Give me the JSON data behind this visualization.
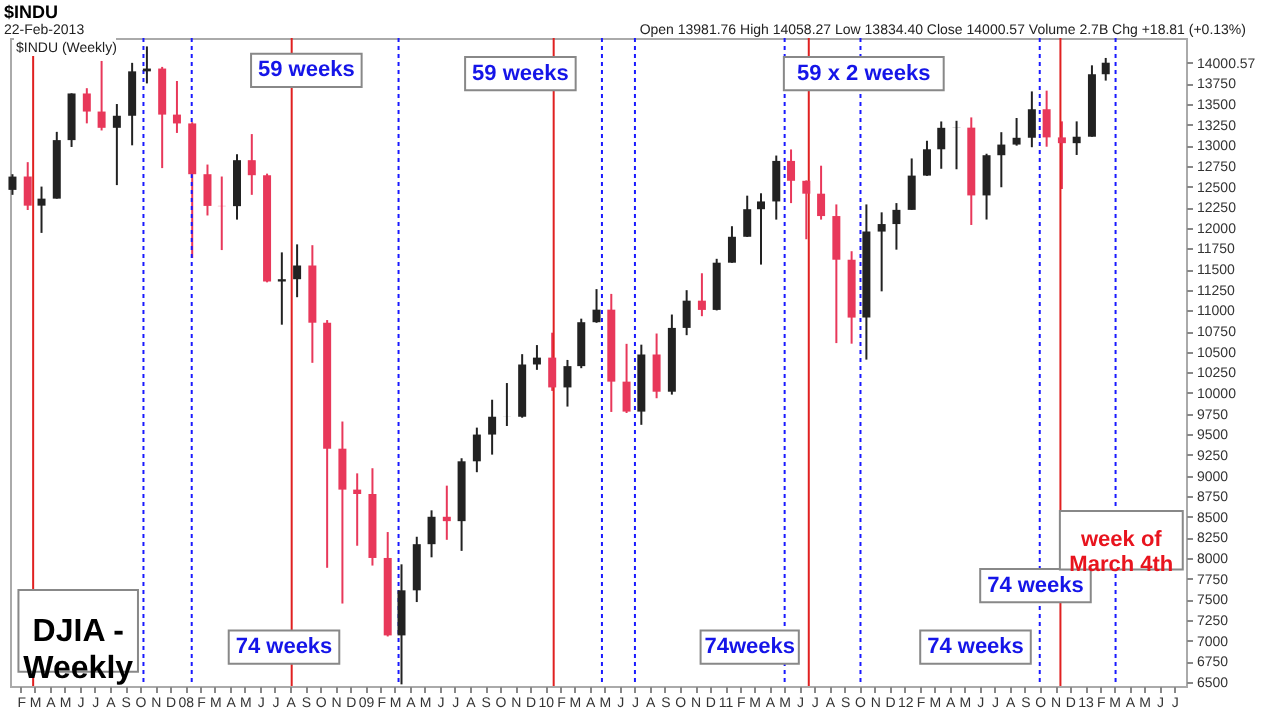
{
  "chart_data": {
    "type": "candlestick",
    "title": "$INDU",
    "subtitle": "22-Feb-2013",
    "annotations": [
      "Open 13981.76 High 14058.27 Low 13834.40 Close 14000.57 Volume 2.7B Chg +18.81 (+0.13%)",
      "$INDU (Weekly)",
      "59 weeks",
      "59 weeks",
      "59 x 2 weeks",
      "74 weeks",
      "74weeks",
      "74 weeks",
      "74 weeks",
      "week of March 4th",
      "DJIA - Weekly"
    ],
    "x": [
      "2007-01-15",
      "2007-02-15",
      "2007-03-15",
      "2007-04-15",
      "2007-05-15",
      "2007-06-15",
      "2007-07-15",
      "2007-08-15",
      "2007-09-15",
      "2007-10-15",
      "2007-11-15",
      "2007-12-15",
      "2008-01-15",
      "2008-02-15",
      "2008-03-15",
      "2008-04-15",
      "2008-05-15",
      "2008-06-15",
      "2008-07-15",
      "2008-08-15",
      "2008-09-15",
      "2008-10-15",
      "2008-11-15",
      "2008-12-15",
      "2009-01-15",
      "2009-02-15",
      "2009-03-15",
      "2009-04-15",
      "2009-05-15",
      "2009-06-15",
      "2009-07-15",
      "2009-08-15",
      "2009-09-15",
      "2009-10-15",
      "2009-11-15",
      "2009-12-15",
      "2010-01-15",
      "2010-02-15",
      "2010-03-15",
      "2010-04-15",
      "2010-05-15",
      "2010-06-15",
      "2010-07-15",
      "2010-08-15",
      "2010-09-15",
      "2010-10-15",
      "2010-11-15",
      "2010-12-15",
      "2011-01-15",
      "2011-02-15",
      "2011-03-15",
      "2011-04-15",
      "2011-05-15",
      "2011-06-15",
      "2011-07-15",
      "2011-08-15",
      "2011-09-15",
      "2011-10-15",
      "2011-11-15",
      "2011-12-15",
      "2012-01-15",
      "2012-02-15",
      "2012-03-15",
      "2012-04-15",
      "2012-05-15",
      "2012-06-15",
      "2012-07-15",
      "2012-08-15",
      "2012-09-15",
      "2012-10-15",
      "2012-11-15",
      "2012-12-15",
      "2013-01-15",
      "2013-02-12"
    ],
    "ohlc": [
      [
        12460,
        12650,
        12400,
        12621
      ],
      [
        12622,
        12796,
        12216,
        12269
      ],
      [
        12269,
        12500,
        11939,
        12354
      ],
      [
        12354,
        13163,
        12354,
        13063
      ],
      [
        13063,
        13630,
        12980,
        13628
      ],
      [
        13628,
        13692,
        13266,
        13409
      ],
      [
        13409,
        14022,
        13180,
        13212
      ],
      [
        13212,
        13500,
        12518,
        13358
      ],
      [
        13358,
        13999,
        13000,
        13896
      ],
      [
        13896,
        14198,
        13750,
        13930
      ],
      [
        13930,
        13950,
        12724,
        13372
      ],
      [
        13372,
        13779,
        13150,
        13265
      ],
      [
        13265,
        13280,
        11635,
        12650
      ],
      [
        12650,
        12767,
        12150,
        12266
      ],
      [
        12266,
        12622,
        11731,
        12263
      ],
      [
        12263,
        12892,
        12100,
        12820
      ],
      [
        12820,
        13136,
        12400,
        12638
      ],
      [
        12638,
        12657,
        11340,
        11350
      ],
      [
        11350,
        11703,
        10827,
        11378
      ],
      [
        11378,
        11800,
        11160,
        11544
      ],
      [
        11544,
        11790,
        10365,
        10851
      ],
      [
        10851,
        10883,
        7882,
        9325
      ],
      [
        9325,
        9654,
        7449,
        8829
      ],
      [
        8829,
        9026,
        8149,
        8776
      ],
      [
        8776,
        9088,
        7909,
        8001
      ],
      [
        8001,
        8315,
        7050,
        7063
      ],
      [
        7063,
        7924,
        6470,
        7609
      ],
      [
        7609,
        8258,
        7467,
        8168
      ],
      [
        8168,
        8578,
        8009,
        8500
      ],
      [
        8500,
        8877,
        8221,
        8447
      ],
      [
        8447,
        9209,
        8087,
        9172
      ],
      [
        9172,
        9580,
        9040,
        9496
      ],
      [
        9496,
        9918,
        9253,
        9712
      ],
      [
        9712,
        10120,
        9600,
        9713
      ],
      [
        9713,
        10470,
        9700,
        10345
      ],
      [
        10345,
        10580,
        10280,
        10428
      ],
      [
        10428,
        10730,
        10025,
        10067
      ],
      [
        10067,
        10400,
        9835,
        10325
      ],
      [
        10325,
        10900,
        10300,
        10857
      ],
      [
        10857,
        11258,
        10850,
        11009
      ],
      [
        11009,
        11200,
        9770,
        10137
      ],
      [
        10137,
        10595,
        9757,
        9774
      ],
      [
        9774,
        10585,
        9614,
        10466
      ],
      [
        10466,
        10720,
        9936,
        10015
      ],
      [
        10015,
        10950,
        9980,
        10788
      ],
      [
        10788,
        11245,
        10700,
        11118
      ],
      [
        11118,
        11450,
        10930,
        11006
      ],
      [
        11006,
        11625,
        11000,
        11578
      ],
      [
        11578,
        12020,
        11577,
        11892
      ],
      [
        11892,
        12390,
        11890,
        12226
      ],
      [
        12226,
        12419,
        11555,
        12320
      ],
      [
        12320,
        12876,
        12100,
        12811
      ],
      [
        12811,
        12950,
        12300,
        12570
      ],
      [
        12570,
        12575,
        11862,
        12414
      ],
      [
        12414,
        12753,
        12100,
        12143
      ],
      [
        12143,
        12284,
        10604,
        11614
      ],
      [
        11614,
        11717,
        10597,
        10913
      ],
      [
        10913,
        12284,
        10404,
        11955
      ],
      [
        11955,
        12188,
        11231,
        12046
      ],
      [
        12046,
        12300,
        11736,
        12218
      ],
      [
        12218,
        12841,
        12218,
        12633
      ],
      [
        12633,
        13055,
        12630,
        12952
      ],
      [
        12952,
        13289,
        12716,
        13212
      ],
      [
        13212,
        13297,
        12710,
        13214
      ],
      [
        13214,
        13338,
        12035,
        12393
      ],
      [
        12393,
        12898,
        12101,
        12880
      ],
      [
        12880,
        13159,
        12492,
        13009
      ],
      [
        13009,
        13331,
        12996,
        13091
      ],
      [
        13091,
        13653,
        12977,
        13437
      ],
      [
        13437,
        13662,
        12983,
        13096
      ],
      [
        13096,
        13290,
        12471,
        13026
      ],
      [
        13026,
        13290,
        12883,
        13104
      ],
      [
        13104,
        13969,
        13104,
        13861
      ],
      [
        13861,
        14058.27,
        13784,
        14000.57
      ]
    ],
    "colors": [
      "#222222",
      "#e8385a",
      "#222222",
      "#222222",
      "#222222",
      "#e8385a",
      "#e8385a",
      "#222222",
      "#222222",
      "#222222",
      "#e8385a",
      "#e8385a",
      "#e8385a",
      "#e8385a",
      "#e8385a",
      "#222222",
      "#e8385a",
      "#e8385a",
      "#222222",
      "#222222",
      "#e8385a",
      "#e8385a",
      "#e8385a",
      "#e8385a",
      "#e8385a",
      "#e8385a",
      "#222222",
      "#222222",
      "#222222",
      "#e8385a",
      "#222222",
      "#222222",
      "#222222",
      "#222222",
      "#222222",
      "#222222",
      "#e8385a",
      "#222222",
      "#222222",
      "#222222",
      "#e8385a",
      "#e8385a",
      "#222222",
      "#e8385a",
      "#222222",
      "#222222",
      "#e8385a",
      "#222222",
      "#222222",
      "#222222",
      "#222222",
      "#222222",
      "#e8385a",
      "#e8385a",
      "#e8385a",
      "#e8385a",
      "#e8385a",
      "#222222",
      "#222222",
      "#222222",
      "#222222",
      "#222222",
      "#222222",
      "#222222",
      "#e8385a",
      "#222222",
      "#222222",
      "#222222",
      "#222222",
      "#e8385a",
      "#e8385a",
      "#222222",
      "#222222",
      "#222222"
    ],
    "xlim": [
      "2007-01-10",
      "2013-07-25"
    ],
    "xticks": [
      {
        "value": "2007-02-01",
        "label": "F"
      },
      {
        "value": "2007-03-01",
        "label": "M"
      },
      {
        "value": "2007-04-01",
        "label": "A"
      },
      {
        "value": "2007-05-01",
        "label": "M"
      },
      {
        "value": "2007-06-01",
        "label": "J"
      },
      {
        "value": "2007-07-01",
        "label": "J"
      },
      {
        "value": "2007-08-01",
        "label": "A"
      },
      {
        "value": "2007-09-01",
        "label": "S"
      },
      {
        "value": "2007-10-01",
        "label": "O"
      },
      {
        "value": "2007-11-01",
        "label": "N"
      },
      {
        "value": "2007-12-01",
        "label": "D"
      },
      {
        "value": "2008-01-01",
        "label": "08"
      },
      {
        "value": "2008-02-01",
        "label": "F"
      },
      {
        "value": "2008-03-01",
        "label": "M"
      },
      {
        "value": "2008-04-01",
        "label": "A"
      },
      {
        "value": "2008-05-01",
        "label": "M"
      },
      {
        "value": "2008-06-01",
        "label": "J"
      },
      {
        "value": "2008-07-01",
        "label": "J"
      },
      {
        "value": "2008-08-01",
        "label": "A"
      },
      {
        "value": "2008-09-01",
        "label": "S"
      },
      {
        "value": "2008-10-01",
        "label": "O"
      },
      {
        "value": "2008-11-01",
        "label": "N"
      },
      {
        "value": "2008-12-01",
        "label": "D"
      },
      {
        "value": "2009-01-01",
        "label": "09"
      },
      {
        "value": "2009-02-01",
        "label": "F"
      },
      {
        "value": "2009-03-01",
        "label": "M"
      },
      {
        "value": "2009-04-01",
        "label": "A"
      },
      {
        "value": "2009-05-01",
        "label": "M"
      },
      {
        "value": "2009-06-01",
        "label": "J"
      },
      {
        "value": "2009-07-01",
        "label": "J"
      },
      {
        "value": "2009-08-01",
        "label": "A"
      },
      {
        "value": "2009-09-01",
        "label": "S"
      },
      {
        "value": "2009-10-01",
        "label": "O"
      },
      {
        "value": "2009-11-01",
        "label": "N"
      },
      {
        "value": "2009-12-01",
        "label": "D"
      },
      {
        "value": "2010-01-01",
        "label": "10"
      },
      {
        "value": "2010-02-01",
        "label": "F"
      },
      {
        "value": "2010-03-01",
        "label": "M"
      },
      {
        "value": "2010-04-01",
        "label": "A"
      },
      {
        "value": "2010-05-01",
        "label": "M"
      },
      {
        "value": "2010-06-01",
        "label": "J"
      },
      {
        "value": "2010-07-01",
        "label": "J"
      },
      {
        "value": "2010-08-01",
        "label": "A"
      },
      {
        "value": "2010-09-01",
        "label": "S"
      },
      {
        "value": "2010-10-01",
        "label": "O"
      },
      {
        "value": "2010-11-01",
        "label": "N"
      },
      {
        "value": "2010-12-01",
        "label": "D"
      },
      {
        "value": "2011-01-01",
        "label": "11"
      },
      {
        "value": "2011-02-01",
        "label": "F"
      },
      {
        "value": "2011-03-01",
        "label": "M"
      },
      {
        "value": "2011-04-01",
        "label": "A"
      },
      {
        "value": "2011-05-01",
        "label": "M"
      },
      {
        "value": "2011-06-01",
        "label": "J"
      },
      {
        "value": "2011-07-01",
        "label": "J"
      },
      {
        "value": "2011-08-01",
        "label": "A"
      },
      {
        "value": "2011-09-01",
        "label": "S"
      },
      {
        "value": "2011-10-01",
        "label": "O"
      },
      {
        "value": "2011-11-01",
        "label": "N"
      },
      {
        "value": "2011-12-01",
        "label": "D"
      },
      {
        "value": "2012-01-01",
        "label": "12"
      },
      {
        "value": "2012-02-01",
        "label": "F"
      },
      {
        "value": "2012-03-01",
        "label": "M"
      },
      {
        "value": "2012-04-01",
        "label": "A"
      },
      {
        "value": "2012-05-01",
        "label": "M"
      },
      {
        "value": "2012-06-01",
        "label": "J"
      },
      {
        "value": "2012-07-01",
        "label": "J"
      },
      {
        "value": "2012-08-01",
        "label": "A"
      },
      {
        "value": "2012-09-01",
        "label": "S"
      },
      {
        "value": "2012-10-01",
        "label": "O"
      },
      {
        "value": "2012-11-01",
        "label": "N"
      },
      {
        "value": "2012-12-01",
        "label": "D"
      },
      {
        "value": "2013-01-01",
        "label": "13"
      },
      {
        "value": "2013-02-01",
        "label": "F"
      },
      {
        "value": "2013-03-01",
        "label": "M"
      },
      {
        "value": "2013-04-01",
        "label": "A"
      },
      {
        "value": "2013-05-01",
        "label": "M"
      },
      {
        "value": "2013-06-01",
        "label": "J"
      },
      {
        "value": "2013-07-01",
        "label": "J"
      }
    ],
    "ylim": [
      6450,
      14300
    ],
    "yticks": [
      6500,
      6750,
      7000,
      7250,
      7500,
      7750,
      8000,
      8250,
      8500,
      8750,
      9000,
      9250,
      9500,
      9750,
      10000,
      10250,
      10500,
      10750,
      11000,
      11250,
      11500,
      11750,
      12000,
      12250,
      12500,
      12750,
      13000,
      13250,
      13500,
      13750,
      14000.57
    ],
    "ref_lines": [
      {
        "axis": "x",
        "value": "2007-10-08",
        "color": "#1a1aff",
        "line_style": "dotted"
      },
      {
        "axis": "x",
        "value": "2008-01-14",
        "color": "#1a1aff",
        "line_style": "dotted"
      },
      {
        "axis": "x",
        "value": "2009-03-09",
        "color": "#1a1aff",
        "line_style": "dotted"
      },
      {
        "axis": "x",
        "value": "2010-04-26",
        "color": "#1a1aff",
        "line_style": "dotted"
      },
      {
        "axis": "x",
        "value": "2010-07-02",
        "color": "#1a1aff",
        "line_style": "dotted"
      },
      {
        "axis": "x",
        "value": "2011-05-02",
        "color": "#1a1aff",
        "line_style": "dotted"
      },
      {
        "axis": "x",
        "value": "2011-10-03",
        "color": "#1a1aff",
        "line_style": "dotted"
      },
      {
        "axis": "x",
        "value": "2012-10-01",
        "color": "#1a1aff",
        "line_style": "dotted"
      },
      {
        "axis": "x",
        "value": "2013-03-04",
        "color": "#1a1aff",
        "line_style": "dotted"
      },
      {
        "axis": "x",
        "value": "2007-02-26",
        "color": "#e02020",
        "line_style": "solid"
      },
      {
        "axis": "x",
        "value": "2008-08-04",
        "color": "#e02020",
        "line_style": "solid"
      },
      {
        "axis": "x",
        "value": "2010-01-18",
        "color": "#e02020",
        "line_style": "solid"
      },
      {
        "axis": "x",
        "value": "2011-06-20",
        "color": "#e02020",
        "line_style": "solid"
      },
      {
        "axis": "x",
        "value": "2012-11-12",
        "color": "#e02020",
        "line_style": "solid"
      }
    ]
  }
}
